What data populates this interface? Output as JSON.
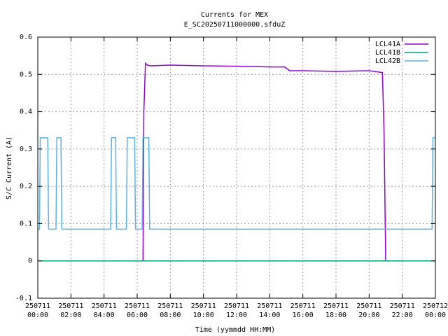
{
  "chart_data": {
    "type": "line",
    "title": "Currents for MEX",
    "subtitle": "E_SC20250711000000.sfduZ",
    "xlabel": "Time (yymmdd HH:MM)",
    "ylabel": "S/C Current (A)",
    "xlim": [
      0,
      24
    ],
    "ylim": [
      -0.1,
      0.6
    ],
    "grid": true,
    "legend_position": "top-right",
    "y_ticks": [
      "-0.1",
      "0",
      "0.1",
      "0.2",
      "0.3",
      "0.4",
      "0.5",
      "0.6"
    ],
    "x_ticks": [
      {
        "date": "250711",
        "time": "00:00"
      },
      {
        "date": "250711",
        "time": "02:00"
      },
      {
        "date": "250711",
        "time": "04:00"
      },
      {
        "date": "250711",
        "time": "06:00"
      },
      {
        "date": "250711",
        "time": "08:00"
      },
      {
        "date": "250711",
        "time": "10:00"
      },
      {
        "date": "250711",
        "time": "12:00"
      },
      {
        "date": "250711",
        "time": "14:00"
      },
      {
        "date": "250711",
        "time": "16:00"
      },
      {
        "date": "250711",
        "time": "18:00"
      },
      {
        "date": "250711",
        "time": "20:00"
      },
      {
        "date": "250711",
        "time": "22:00"
      },
      {
        "date": "250712",
        "time": "00:00"
      }
    ],
    "series": [
      {
        "name": "LCL41A",
        "color": "#9400d3",
        "x": [
          0.0,
          6.35,
          6.4,
          6.5,
          6.6,
          6.8,
          8.0,
          10.0,
          12.0,
          14.0,
          14.9,
          15.2,
          16.0,
          18.0,
          20.0,
          20.8,
          20.9,
          21.0,
          24.0
        ],
        "y": [
          0.0,
          0.0,
          0.4,
          0.53,
          0.525,
          0.523,
          0.525,
          0.523,
          0.522,
          0.52,
          0.52,
          0.51,
          0.51,
          0.508,
          0.51,
          0.505,
          0.35,
          0.0,
          0.0
        ]
      },
      {
        "name": "LCL41B",
        "color": "#009e73",
        "x": [
          0.0,
          24.0
        ],
        "y": [
          0.0,
          0.0
        ]
      },
      {
        "name": "LCL42B",
        "color": "#56b4e9",
        "x": [
          0.0,
          0.1,
          0.15,
          0.6,
          0.65,
          1.1,
          1.15,
          1.4,
          1.45,
          1.6,
          1.65,
          4.4,
          4.45,
          4.7,
          4.75,
          5.35,
          5.4,
          5.85,
          5.9,
          6.3,
          6.35,
          6.7,
          6.75,
          23.8,
          23.85,
          24.0
        ],
        "y": [
          0.085,
          0.085,
          0.33,
          0.33,
          0.085,
          0.085,
          0.33,
          0.33,
          0.085,
          0.085,
          0.085,
          0.085,
          0.33,
          0.33,
          0.085,
          0.085,
          0.33,
          0.33,
          0.085,
          0.085,
          0.33,
          0.33,
          0.085,
          0.085,
          0.33,
          0.33
        ]
      }
    ]
  }
}
